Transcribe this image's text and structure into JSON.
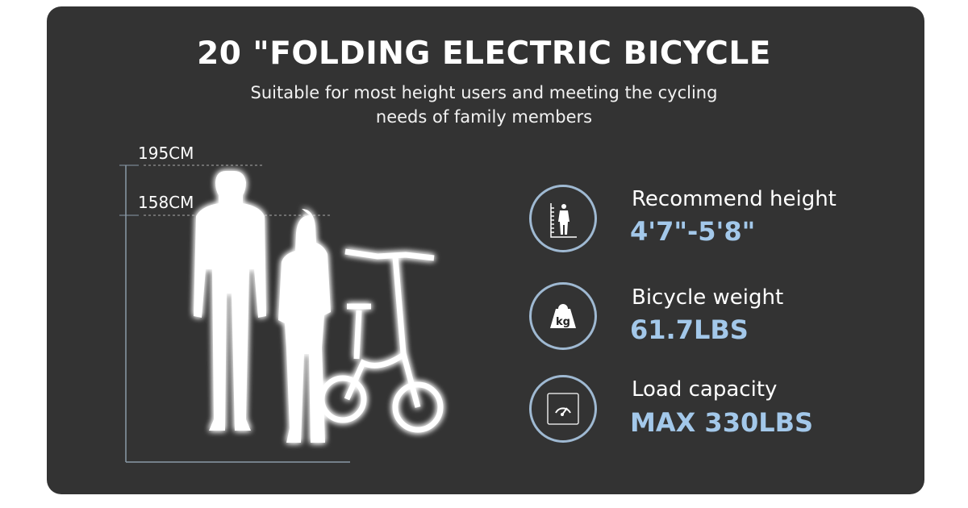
{
  "header": {
    "title": "20 \"FOLDING ELECTRIC BICYCLE",
    "subtitle_line1": "Suitable for most height users and meeting the cycling",
    "subtitle_line2": "needs of family members"
  },
  "measurements": [
    {
      "label": "195CM"
    },
    {
      "label": "158CM"
    }
  ],
  "features": [
    {
      "icon": "height-ruler-person-icon",
      "label": "Recommend height",
      "value": "4'7\"-5'8\""
    },
    {
      "icon": "kg-weight-icon",
      "label": "Bicycle weight",
      "value": "61.7LBS"
    },
    {
      "icon": "gauge-icon",
      "label": "Load capacity",
      "value": "MAX 330LBS"
    }
  ],
  "colors": {
    "background": "#333333",
    "accent": "#a3c8ea",
    "ring": "#9fb9d2"
  }
}
